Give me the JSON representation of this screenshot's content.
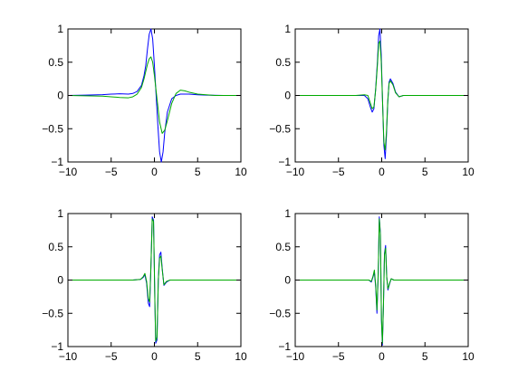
{
  "figure": {
    "background": "#ffffff"
  },
  "chart_data": [
    {
      "type": "line",
      "xlim": [
        -10,
        10
      ],
      "ylim": [
        -1,
        1
      ],
      "xticks": [
        -10,
        -5,
        0,
        5,
        10
      ],
      "xtick_labels": [
        "−10",
        "−5",
        "0",
        "5",
        "10"
      ],
      "yticks": [
        1,
        0.5,
        0,
        -0.5,
        -1
      ],
      "ytick_labels": [
        "1",
        "0.5",
        "0",
        "−0.5",
        "−1"
      ],
      "grid": false,
      "series": [
        {
          "color": "#0000ff",
          "x": [
            -10,
            -8,
            -6,
            -5,
            -4,
            -3,
            -2.5,
            -2,
            -1.5,
            -1.2,
            -1,
            -0.8,
            -0.6,
            -0.4,
            -0.2,
            0,
            0.2,
            0.4,
            0.6,
            0.8,
            1,
            1.2,
            1.5,
            2,
            2.5,
            3,
            4,
            5,
            6,
            8,
            10
          ],
          "y": [
            0,
            0.005,
            0.012,
            0.02,
            0.025,
            0.02,
            0.03,
            0.06,
            0.15,
            0.3,
            0.45,
            0.7,
            0.92,
            1.0,
            0.85,
            0.45,
            0.0,
            -0.45,
            -0.85,
            -1.0,
            -0.85,
            -0.55,
            -0.25,
            -0.05,
            0.0,
            0.02,
            0.02,
            0.01,
            0.005,
            0.0,
            0.0
          ]
        },
        {
          "color": "#00aa00",
          "x": [
            -10,
            -8,
            -6,
            -5,
            -4,
            -3,
            -2.5,
            -2,
            -1.5,
            -1.2,
            -1,
            -0.8,
            -0.6,
            -0.4,
            -0.2,
            0,
            0.3,
            0.6,
            0.9,
            1.2,
            1.5,
            2,
            2.5,
            3,
            3.5,
            4,
            5,
            6,
            7,
            8,
            10
          ],
          "y": [
            0,
            -0.005,
            -0.01,
            -0.02,
            -0.03,
            -0.035,
            -0.02,
            0.02,
            0.12,
            0.25,
            0.36,
            0.47,
            0.55,
            0.58,
            0.5,
            0.3,
            -0.05,
            -0.4,
            -0.57,
            -0.52,
            -0.38,
            -0.12,
            0.03,
            0.08,
            0.07,
            0.05,
            0.02,
            0.01,
            0.0,
            0.0,
            0.0
          ]
        }
      ]
    },
    {
      "type": "line",
      "xlim": [
        -10,
        10
      ],
      "ylim": [
        -1,
        1
      ],
      "xticks": [
        -10,
        -5,
        0,
        5,
        10
      ],
      "xtick_labels": [
        "−10",
        "−5",
        "0",
        "5",
        "10"
      ],
      "yticks": [
        1,
        0.5,
        0,
        -0.5,
        -1
      ],
      "ytick_labels": [
        "1",
        "0.5",
        "0",
        "−0.5",
        "−1"
      ],
      "grid": false,
      "series": [
        {
          "color": "#0000ff",
          "x": [
            -10,
            -5,
            -3,
            -2,
            -1.6,
            -1.3,
            -1.1,
            -0.9,
            -0.7,
            -0.5,
            -0.35,
            -0.2,
            -0.05,
            0.1,
            0.25,
            0.4,
            0.55,
            0.7,
            0.85,
            1.0,
            1.3,
            1.6,
            2.0,
            2.5,
            3,
            5,
            10
          ],
          "y": [
            0,
            0,
            0.0,
            0.0,
            -0.05,
            -0.18,
            -0.25,
            -0.2,
            0.1,
            0.5,
            0.9,
            1.0,
            0.6,
            -0.1,
            -0.75,
            -0.95,
            -0.6,
            -0.1,
            0.2,
            0.25,
            0.18,
            0.05,
            -0.02,
            0.0,
            0.0,
            0,
            0
          ]
        },
        {
          "color": "#00aa00",
          "x": [
            -10,
            -5,
            -3,
            -2,
            -1.6,
            -1.3,
            -1.1,
            -0.9,
            -0.7,
            -0.5,
            -0.35,
            -0.2,
            -0.05,
            0.1,
            0.25,
            0.4,
            0.55,
            0.7,
            0.85,
            1.0,
            1.3,
            1.6,
            2.0,
            2.5,
            3,
            5,
            10
          ],
          "y": [
            0,
            0,
            0.0,
            0.01,
            0.0,
            -0.12,
            -0.2,
            -0.17,
            0.08,
            0.45,
            0.78,
            0.82,
            0.5,
            -0.1,
            -0.7,
            -0.82,
            -0.55,
            -0.08,
            0.18,
            0.22,
            0.16,
            0.04,
            -0.02,
            0.0,
            0.0,
            0,
            0
          ]
        }
      ]
    },
    {
      "type": "line",
      "xlim": [
        -10,
        10
      ],
      "ylim": [
        -1,
        1
      ],
      "xticks": [
        -10,
        -5,
        0,
        5,
        10
      ],
      "xtick_labels": [
        "−10",
        "−5",
        "0",
        "5",
        "10"
      ],
      "yticks": [
        1,
        0.5,
        0,
        -0.5,
        -1
      ],
      "ytick_labels": [
        "1",
        "0.5",
        "0",
        "−0.5",
        "−1"
      ],
      "grid": false,
      "series": [
        {
          "color": "#0000ff",
          "x": [
            -10,
            -5,
            -2.5,
            -1.6,
            -1.3,
            -1.1,
            -0.9,
            -0.7,
            -0.55,
            -0.4,
            -0.25,
            -0.1,
            0.05,
            0.15,
            0.3,
            0.45,
            0.6,
            0.75,
            0.9,
            1.1,
            1.4,
            1.8,
            2.5,
            5,
            10
          ],
          "y": [
            0,
            0,
            0.0,
            0.01,
            0.04,
            0.08,
            -0.05,
            -0.35,
            -0.4,
            0.2,
            0.95,
            0.9,
            -0.3,
            -0.95,
            -0.9,
            0.0,
            0.38,
            0.42,
            0.18,
            -0.08,
            -0.03,
            0.0,
            0.0,
            0,
            0
          ]
        },
        {
          "color": "#00aa00",
          "x": [
            -10,
            -5,
            -2.5,
            -1.6,
            -1.3,
            -1.1,
            -0.9,
            -0.7,
            -0.55,
            -0.4,
            -0.25,
            -0.1,
            0.05,
            0.15,
            0.3,
            0.45,
            0.6,
            0.75,
            0.9,
            1.1,
            1.4,
            1.8,
            2.5,
            5,
            10
          ],
          "y": [
            0,
            0,
            0.0,
            0.01,
            0.05,
            0.1,
            -0.02,
            -0.28,
            -0.33,
            0.22,
            0.92,
            0.88,
            -0.28,
            -0.92,
            -0.86,
            0.0,
            0.33,
            0.36,
            0.16,
            -0.07,
            -0.02,
            0.0,
            0.0,
            0,
            0
          ]
        }
      ]
    },
    {
      "type": "line",
      "xlim": [
        -10,
        10
      ],
      "ylim": [
        -1,
        1
      ],
      "xticks": [
        -10,
        -5,
        0,
        5,
        10
      ],
      "xtick_labels": [
        "−10",
        "−5",
        "0",
        "5",
        "10"
      ],
      "yticks": [
        1,
        0.5,
        0,
        -0.5,
        -1
      ],
      "ytick_labels": [
        "1",
        "0.5",
        "0",
        "−0.5",
        "−1"
      ],
      "grid": false,
      "series": [
        {
          "color": "#0000ff",
          "x": [
            -10,
            -5,
            -2.5,
            -1.5,
            -1.2,
            -1.0,
            -0.85,
            -0.7,
            -0.55,
            -0.4,
            -0.28,
            -0.15,
            -0.03,
            0.08,
            0.2,
            0.32,
            0.45,
            0.58,
            0.72,
            0.9,
            1.1,
            1.4,
            2.0,
            5,
            10
          ],
          "y": [
            0,
            0,
            0.0,
            0.0,
            -0.03,
            0.05,
            0.12,
            -0.1,
            -0.5,
            0.1,
            0.95,
            0.7,
            -0.6,
            -0.98,
            -0.4,
            0.4,
            0.52,
            0.05,
            -0.15,
            -0.06,
            0.02,
            0.0,
            0.0,
            0,
            0
          ]
        },
        {
          "color": "#00aa00",
          "x": [
            -10,
            -5,
            -2.5,
            -1.5,
            -1.2,
            -1.0,
            -0.85,
            -0.7,
            -0.55,
            -0.4,
            -0.28,
            -0.15,
            -0.03,
            0.08,
            0.2,
            0.32,
            0.45,
            0.58,
            0.72,
            0.9,
            1.1,
            1.4,
            2.0,
            5,
            10
          ],
          "y": [
            0,
            0,
            0.0,
            0.0,
            -0.02,
            0.06,
            0.15,
            -0.07,
            -0.45,
            0.12,
            0.92,
            0.68,
            -0.58,
            -0.95,
            -0.38,
            0.38,
            0.48,
            0.04,
            -0.13,
            -0.05,
            0.02,
            0.0,
            0.0,
            0,
            0
          ]
        }
      ]
    }
  ]
}
